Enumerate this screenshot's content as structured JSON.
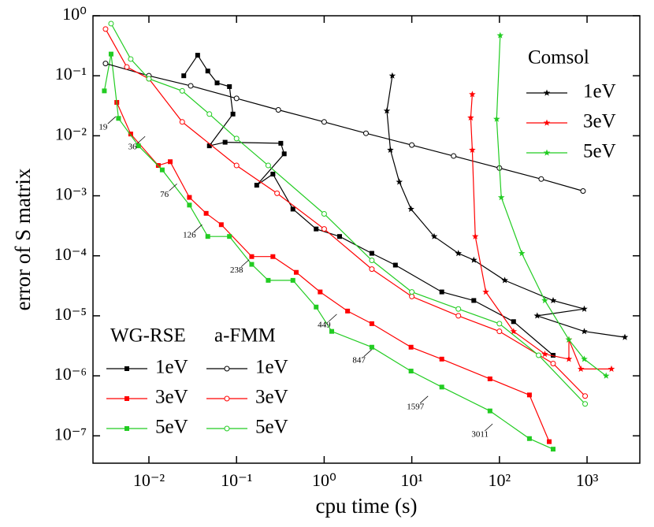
{
  "chart_data": {
    "type": "line",
    "x_label": "cpu time (s)",
    "y_label": "error of S matrix",
    "x_log": true,
    "y_log": true,
    "xlim": [
      0.0023,
      4000
    ],
    "ylim": [
      3.5e-08,
      1
    ],
    "xticks": [
      {
        "value": 0.01,
        "label": "10⁻²"
      },
      {
        "value": 0.1,
        "label": "10⁻¹"
      },
      {
        "value": 1,
        "label": "10⁰"
      },
      {
        "value": 10,
        "label": "10¹"
      },
      {
        "value": 100,
        "label": "10²"
      },
      {
        "value": 1000,
        "label": "10³"
      }
    ],
    "yticks": [
      {
        "value": 1,
        "label": "10⁰"
      },
      {
        "value": 0.1,
        "label": "10⁻¹"
      },
      {
        "value": 0.01,
        "label": "10⁻²"
      },
      {
        "value": 0.001,
        "label": "10⁻³"
      },
      {
        "value": 0.0001,
        "label": "10⁻⁴"
      },
      {
        "value": 1e-05,
        "label": "10⁻⁵"
      },
      {
        "value": 1e-06,
        "label": "10⁻⁶"
      },
      {
        "value": 1e-07,
        "label": "10⁻⁷"
      }
    ],
    "groups": [
      {
        "title": "WG-RSE",
        "marker": "square",
        "series": [
          {
            "name": "1eV",
            "color": "#000000",
            "x": [
              0.025,
              0.036,
              0.047,
              0.06,
              0.083,
              0.091,
              0.049,
              0.074,
              0.32,
              0.35,
              0.17,
              0.26,
              0.44,
              0.81,
              1.5,
              3.5,
              6.5,
              22,
              51,
              145,
              410
            ],
            "values": [
              0.1,
              0.22,
              0.12,
              0.076,
              0.066,
              0.023,
              0.0068,
              0.0078,
              0.0075,
              0.005,
              0.0015,
              0.0023,
              0.0006,
              0.00028,
              0.00021,
              0.00011,
              7e-05,
              2.5e-05,
              1.8e-05,
              8e-06,
              2.2e-06
            ]
          },
          {
            "name": "3eV",
            "color": "#ff0000",
            "x": [
              0.0043,
              0.0062,
              0.0128,
              0.0175,
              0.029,
              0.045,
              0.067,
              0.149,
              0.26,
              0.48,
              0.9,
              1.85,
              3.5,
              9.8,
              22,
              78,
              220,
              370
            ],
            "values": [
              0.036,
              0.0107,
              0.0032,
              0.0037,
              0.00094,
              0.00051,
              0.00033,
              9.7e-05,
              9.7e-05,
              5.3e-05,
              2.5e-05,
              1.2e-05,
              7.4e-06,
              3e-06,
              1.9e-06,
              8.9e-07,
              4.8e-07,
              8e-08
            ]
          },
          {
            "name": "5eV",
            "color": "#22cc22",
            "x": [
              0.0031,
              0.0037,
              0.0045,
              0.0076,
              0.0142,
              0.029,
              0.047,
              0.083,
              0.149,
              0.23,
              0.44,
              0.81,
              1.22,
              3.5,
              9.8,
              22,
              78,
              220,
              410
            ],
            "values": [
              0.056,
              0.23,
              0.0195,
              0.0068,
              0.0027,
              0.0007,
              0.00021,
              0.00021,
              7.2e-05,
              3.9e-05,
              3.9e-05,
              1.4e-05,
              5.5e-06,
              3e-06,
              1.2e-06,
              6.5e-07,
              2.6e-07,
              9e-08,
              6e-08
            ]
          }
        ]
      },
      {
        "title": "a-FMM",
        "marker": "circle",
        "series": [
          {
            "name": "1eV",
            "color": "#000000",
            "x": [
              0.0032,
              0.01,
              0.03,
              0.1,
              0.3,
              1,
              3,
              10,
              30,
              100,
              300,
              900
            ],
            "values": [
              0.16,
              0.1,
              0.068,
              0.042,
              0.027,
              0.017,
              0.011,
              0.007,
              0.0046,
              0.0029,
              0.0019,
              0.0012
            ]
          },
          {
            "name": "3eV",
            "color": "#ff0000",
            "x": [
              0.0032,
              0.0056,
              0.01,
              0.024,
              0.1,
              0.29,
              1,
              3.5,
              10,
              34,
              100,
              410,
              950
            ],
            "values": [
              0.6,
              0.14,
              0.089,
              0.017,
              0.0032,
              0.0011,
              0.00028,
              6e-05,
              2.1e-05,
              1e-05,
              5.5e-06,
              1.6e-06,
              4.6e-07
            ]
          },
          {
            "name": "5eV",
            "color": "#22cc22",
            "x": [
              0.0037,
              0.0062,
              0.01,
              0.024,
              0.049,
              0.1,
              0.23,
              1,
              3.5,
              10,
              34,
              100,
              280,
              950
            ],
            "values": [
              0.74,
              0.19,
              0.089,
              0.056,
              0.023,
              0.009,
              0.0032,
              0.0005,
              8.4e-05,
              2.5e-05,
              1.3e-05,
              7.4e-06,
              2.2e-06,
              3.4e-07
            ]
          }
        ]
      },
      {
        "title": "Comsol",
        "marker": "star",
        "series": [
          {
            "name": "1eV",
            "color": "#000000",
            "x": [
              6.0,
              5.2,
              5.7,
              7.2,
              9.8,
              18,
              34,
              51,
              115,
              410,
              930,
              270,
              930,
              2700
            ],
            "values": [
              0.1,
              0.026,
              0.0058,
              0.0017,
              0.0006,
              0.00021,
              0.00011,
              8.5e-05,
              3.9e-05,
              1.8e-05,
              1.3e-05,
              1e-05,
              5.5e-06,
              4.4e-06
            ]
          },
          {
            "name": "3eV",
            "color": "#ff0000",
            "x": [
              49,
              47,
              49,
              53,
              70,
              145,
              330,
              620,
              620,
              850,
              1900
            ],
            "values": [
              0.049,
              0.02,
              0.0058,
              0.00021,
              2.5e-05,
              5.5e-06,
              2.3e-06,
              1.9e-06,
              4e-06,
              1.3e-06,
              1.3e-06
            ]
          },
          {
            "name": "5eV",
            "color": "#22cc22",
            "x": [
              102,
              93,
              105,
              180,
              330,
              620,
              930,
              1650
            ],
            "values": [
              0.47,
              0.019,
              0.00094,
              0.00011,
              1.8e-05,
              4e-06,
              1.9e-06,
              1e-06
            ]
          }
        ]
      }
    ],
    "annotations": [
      {
        "text": "19",
        "x": 0.003,
        "y": 0.0145
      },
      {
        "text": "36",
        "x": 0.0065,
        "y": 0.0068
      },
      {
        "text": "76",
        "x": 0.015,
        "y": 0.0011
      },
      {
        "text": "126",
        "x": 0.029,
        "y": 0.00023
      },
      {
        "text": "238",
        "x": 0.1,
        "y": 6e-05
      },
      {
        "text": "449",
        "x": 1,
        "y": 7.4e-06
      },
      {
        "text": "847",
        "x": 2.5,
        "y": 1.9e-06
      },
      {
        "text": "1597",
        "x": 11,
        "y": 3.2e-07
      },
      {
        "text": "3011",
        "x": 60,
        "y": 1.1e-07
      }
    ]
  }
}
